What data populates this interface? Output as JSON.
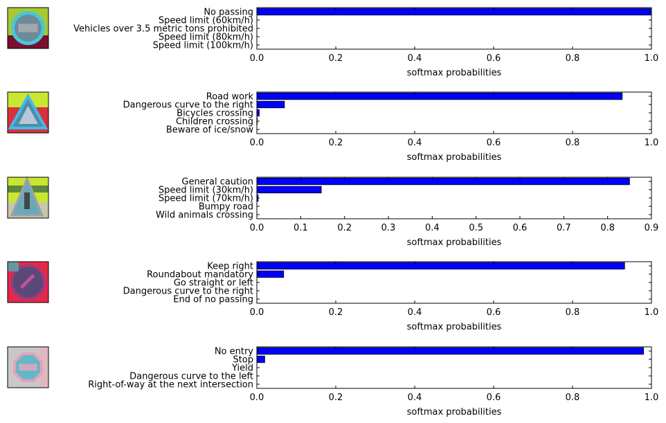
{
  "chart_data": [
    {
      "type": "bar",
      "orientation": "horizontal",
      "sign_image": "sign-thumbnail-no-passing",
      "categories": [
        "No passing",
        "Speed limit (60km/h)",
        "Vehicles over 3.5 metric tons prohibited",
        "Speed limit (80km/h)",
        "Speed limit (100km/h)"
      ],
      "values": [
        1.0,
        0.0,
        0.0,
        0.0,
        0.0
      ],
      "xlabel": "softmax probabilities",
      "xlim": [
        0,
        1.0
      ],
      "xticks": [
        "0.0",
        "0.2",
        "0.4",
        "0.6",
        "0.8",
        "1.0"
      ]
    },
    {
      "type": "bar",
      "orientation": "horizontal",
      "sign_image": "sign-thumbnail-road-work",
      "categories": [
        "Road work",
        "Dangerous curve to the right",
        "Bicycles crossing",
        "Children crossing",
        "Beware of ice/snow"
      ],
      "values": [
        0.926,
        0.07,
        0.006,
        0.001,
        0.0
      ],
      "xlabel": "softmax probabilities",
      "xlim": [
        0,
        1.0
      ],
      "xticks": [
        "0.0",
        "0.2",
        "0.4",
        "0.6",
        "0.8",
        "1.0"
      ]
    },
    {
      "type": "bar",
      "orientation": "horizontal",
      "sign_image": "sign-thumbnail-general-caution",
      "categories": [
        "General caution",
        "Speed limit (30km/h)",
        "Speed limit (70km/h)",
        "Bumpy road",
        "Wild animals crossing"
      ],
      "values": [
        0.85,
        0.147,
        0.003,
        0.0,
        0.0
      ],
      "xlabel": "softmax probabilities",
      "xlim": [
        0,
        0.9
      ],
      "xticks": [
        "0.0",
        "0.1",
        "0.2",
        "0.3",
        "0.4",
        "0.5",
        "0.6",
        "0.7",
        "0.8",
        "0.9"
      ]
    },
    {
      "type": "bar",
      "orientation": "horizontal",
      "sign_image": "sign-thumbnail-keep-right",
      "categories": [
        "Keep right",
        "Roundabout mandatory",
        "Go straight or left",
        "Dangerous curve to the right",
        "End of no passing"
      ],
      "values": [
        0.932,
        0.068,
        0.0,
        0.0,
        0.0
      ],
      "xlabel": "softmax probabilities",
      "xlim": [
        0,
        1.0
      ],
      "xticks": [
        "0.0",
        "0.2",
        "0.4",
        "0.6",
        "0.8",
        "1.0"
      ]
    },
    {
      "type": "bar",
      "orientation": "horizontal",
      "sign_image": "sign-thumbnail-stop",
      "categories": [
        "No entry",
        "Stop",
        "Yield",
        "Dangerous curve to the left",
        "Right-of-way at the next intersection"
      ],
      "values": [
        0.98,
        0.02,
        0.0,
        0.0,
        0.0
      ],
      "xlabel": "softmax probabilities",
      "xlim": [
        0,
        1.0
      ],
      "xticks": [
        "0.0",
        "0.2",
        "0.4",
        "0.6",
        "0.8",
        "1.0"
      ]
    }
  ],
  "colors": {
    "bar": "#0000ff",
    "bar_edge": "#000000",
    "axis": "#000000"
  }
}
